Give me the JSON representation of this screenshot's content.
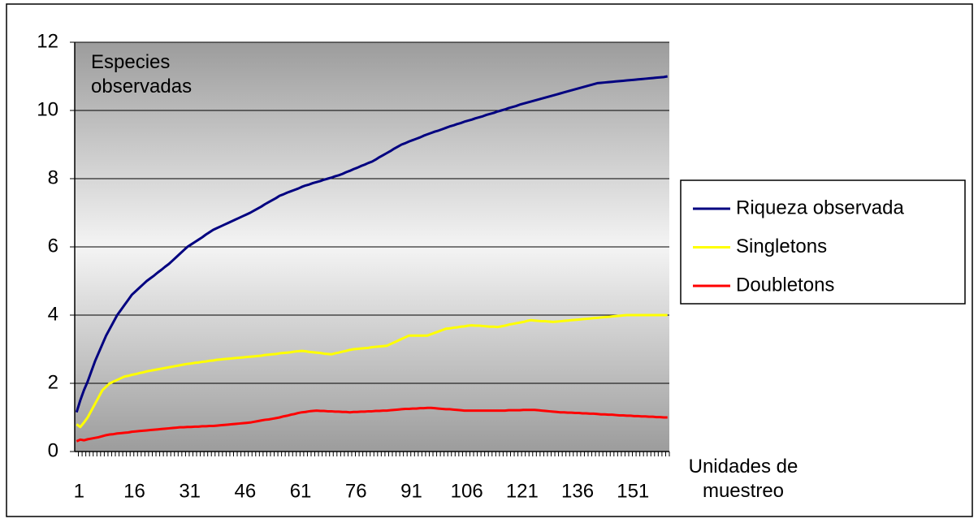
{
  "chart_data": {
    "type": "line",
    "annotation": "Especies observadas",
    "x_label": "Unidades de muestreo",
    "categories": [
      "1",
      null,
      null,
      null,
      null,
      null,
      null,
      null,
      null,
      null,
      null,
      null,
      null,
      null,
      null,
      "16",
      null,
      null,
      null,
      null,
      null,
      null,
      null,
      null,
      null,
      null,
      null,
      null,
      null,
      null,
      "31",
      null,
      null,
      null,
      null,
      null,
      null,
      null,
      null,
      null,
      null,
      null,
      null,
      null,
      null,
      "46",
      null,
      null,
      null,
      null,
      null,
      null,
      null,
      null,
      null,
      null,
      null,
      null,
      null,
      null,
      "61",
      null,
      null,
      null,
      null,
      null,
      null,
      null,
      null,
      null,
      null,
      null,
      null,
      null,
      null,
      "76",
      null,
      null,
      null,
      null,
      null,
      null,
      null,
      null,
      null,
      null,
      null,
      null,
      null,
      null,
      "91",
      null,
      null,
      null,
      null,
      null,
      null,
      null,
      null,
      null,
      null,
      null,
      null,
      null,
      null,
      "106",
      null,
      null,
      null,
      null,
      null,
      null,
      null,
      null,
      null,
      null,
      null,
      null,
      null,
      null,
      "121",
      null,
      null,
      null,
      null,
      null,
      null,
      null,
      null,
      null,
      null,
      null,
      null,
      null,
      null,
      "136",
      null,
      null,
      null,
      null,
      null,
      null,
      null,
      null,
      null,
      null,
      null,
      null,
      null,
      null,
      "151",
      null,
      null,
      null,
      null,
      null,
      null,
      null,
      null,
      null,
      null
    ],
    "series": [
      {
        "name": "Riqueza observada",
        "color": "#000080",
        "values": [
          1.15,
          1.5,
          1.8,
          2.05,
          2.35,
          2.65,
          2.9,
          3.15,
          3.4,
          3.6,
          3.8,
          4.0,
          4.15,
          4.3,
          4.45,
          4.6,
          4.7,
          4.8,
          4.9,
          5.0,
          5.08,
          5.16,
          5.25,
          5.33,
          5.42,
          5.5,
          5.6,
          5.7,
          5.8,
          5.9,
          6.0,
          6.07,
          6.14,
          6.21,
          6.28,
          6.36,
          6.43,
          6.5,
          6.55,
          6.6,
          6.65,
          6.7,
          6.75,
          6.8,
          6.85,
          6.9,
          6.95,
          7.0,
          7.06,
          7.12,
          7.18,
          7.25,
          7.31,
          7.37,
          7.43,
          7.5,
          7.54,
          7.59,
          7.63,
          7.67,
          7.71,
          7.76,
          7.8,
          7.83,
          7.87,
          7.9,
          7.93,
          7.97,
          8.0,
          8.03,
          8.07,
          8.1,
          8.14,
          8.19,
          8.23,
          8.28,
          8.32,
          8.37,
          8.41,
          8.46,
          8.5,
          8.56,
          8.63,
          8.69,
          8.75,
          8.81,
          8.88,
          8.94,
          9.0,
          9.04,
          9.09,
          9.13,
          9.17,
          9.21,
          9.26,
          9.3,
          9.34,
          9.38,
          9.41,
          9.45,
          9.49,
          9.53,
          9.56,
          9.6,
          9.63,
          9.67,
          9.7,
          9.73,
          9.77,
          9.8,
          9.83,
          9.87,
          9.9,
          9.93,
          9.97,
          10.0,
          10.03,
          10.07,
          10.1,
          10.13,
          10.17,
          10.2,
          10.23,
          10.26,
          10.29,
          10.32,
          10.35,
          10.38,
          10.41,
          10.44,
          10.47,
          10.5,
          10.53,
          10.56,
          10.59,
          10.62,
          10.65,
          10.68,
          10.71,
          10.74,
          10.77,
          10.8,
          10.81,
          10.82,
          10.83,
          10.84,
          10.85,
          10.86,
          10.87,
          10.88,
          10.89,
          10.9,
          10.91,
          10.92,
          10.93,
          10.94,
          10.95,
          10.96,
          10.97,
          10.98,
          11.0
        ]
      },
      {
        "name": "Singletons",
        "color": "#ffff00",
        "values": [
          0.8,
          0.72,
          0.85,
          1.0,
          1.2,
          1.4,
          1.6,
          1.8,
          1.9,
          2.0,
          2.05,
          2.1,
          2.15,
          2.2,
          2.22,
          2.25,
          2.27,
          2.3,
          2.32,
          2.35,
          2.37,
          2.39,
          2.41,
          2.43,
          2.45,
          2.47,
          2.49,
          2.51,
          2.53,
          2.55,
          2.57,
          2.58,
          2.6,
          2.61,
          2.63,
          2.64,
          2.66,
          2.67,
          2.69,
          2.7,
          2.71,
          2.72,
          2.73,
          2.74,
          2.75,
          2.76,
          2.77,
          2.78,
          2.79,
          2.8,
          2.81,
          2.83,
          2.84,
          2.85,
          2.86,
          2.88,
          2.89,
          2.9,
          2.91,
          2.93,
          2.94,
          2.95,
          2.94,
          2.92,
          2.91,
          2.9,
          2.89,
          2.87,
          2.86,
          2.85,
          2.88,
          2.9,
          2.93,
          2.95,
          2.98,
          3.0,
          3.01,
          3.02,
          3.03,
          3.04,
          3.06,
          3.07,
          3.08,
          3.09,
          3.1,
          3.15,
          3.2,
          3.25,
          3.3,
          3.35,
          3.4,
          3.4,
          3.4,
          3.4,
          3.4,
          3.4,
          3.44,
          3.48,
          3.52,
          3.56,
          3.6,
          3.61,
          3.63,
          3.64,
          3.66,
          3.67,
          3.69,
          3.7,
          3.69,
          3.69,
          3.68,
          3.67,
          3.66,
          3.66,
          3.65,
          3.67,
          3.69,
          3.72,
          3.74,
          3.76,
          3.78,
          3.8,
          3.83,
          3.85,
          3.84,
          3.83,
          3.82,
          3.82,
          3.81,
          3.8,
          3.81,
          3.82,
          3.83,
          3.84,
          3.85,
          3.86,
          3.87,
          3.88,
          3.89,
          3.9,
          3.91,
          3.92,
          3.93,
          3.94,
          3.95,
          3.96,
          3.97,
          3.98,
          3.99,
          4.0,
          4.0,
          4.0,
          4.0,
          4.0,
          4.0,
          4.0,
          4.0,
          4.0,
          4.0,
          4.0,
          4.0
        ]
      },
      {
        "name": "Doubletons",
        "color": "#ff0000",
        "values": [
          0.3,
          0.35,
          0.33,
          0.36,
          0.38,
          0.4,
          0.42,
          0.45,
          0.48,
          0.5,
          0.51,
          0.53,
          0.54,
          0.55,
          0.56,
          0.58,
          0.59,
          0.6,
          0.61,
          0.62,
          0.63,
          0.64,
          0.65,
          0.66,
          0.67,
          0.68,
          0.69,
          0.7,
          0.71,
          0.71,
          0.72,
          0.72,
          0.73,
          0.73,
          0.74,
          0.74,
          0.75,
          0.75,
          0.76,
          0.77,
          0.78,
          0.79,
          0.8,
          0.81,
          0.82,
          0.83,
          0.84,
          0.85,
          0.87,
          0.89,
          0.91,
          0.93,
          0.94,
          0.96,
          0.98,
          1.0,
          1.03,
          1.05,
          1.08,
          1.1,
          1.13,
          1.15,
          1.16,
          1.18,
          1.19,
          1.2,
          1.19,
          1.19,
          1.18,
          1.18,
          1.17,
          1.17,
          1.16,
          1.16,
          1.15,
          1.16,
          1.16,
          1.17,
          1.17,
          1.18,
          1.18,
          1.19,
          1.19,
          1.2,
          1.2,
          1.21,
          1.22,
          1.23,
          1.24,
          1.25,
          1.25,
          1.26,
          1.26,
          1.27,
          1.27,
          1.28,
          1.28,
          1.27,
          1.26,
          1.25,
          1.24,
          1.24,
          1.23,
          1.22,
          1.21,
          1.2,
          1.2,
          1.2,
          1.2,
          1.2,
          1.2,
          1.2,
          1.2,
          1.2,
          1.2,
          1.2,
          1.2,
          1.21,
          1.21,
          1.21,
          1.21,
          1.22,
          1.22,
          1.22,
          1.22,
          1.21,
          1.2,
          1.19,
          1.18,
          1.17,
          1.16,
          1.15,
          1.15,
          1.14,
          1.14,
          1.13,
          1.13,
          1.12,
          1.12,
          1.11,
          1.11,
          1.1,
          1.09,
          1.09,
          1.08,
          1.08,
          1.07,
          1.06,
          1.06,
          1.05,
          1.05,
          1.04,
          1.04,
          1.03,
          1.03,
          1.02,
          1.02,
          1.01,
          1.01,
          1.0,
          1.0
        ]
      }
    ],
    "ylim": [
      0,
      12
    ],
    "yticks": [
      0,
      2,
      4,
      6,
      8,
      10,
      12
    ],
    "grid": true,
    "legend": "right"
  }
}
